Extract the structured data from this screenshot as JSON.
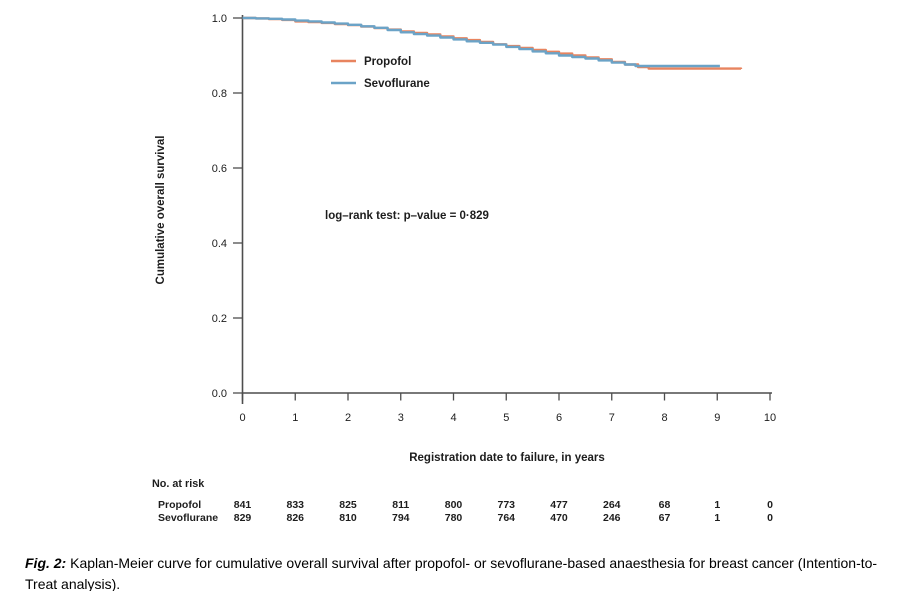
{
  "chart_data": {
    "type": "line",
    "subtype": "kaplan-meier-step",
    "xlabel": "Registration date to failure, in years",
    "ylabel": "Cumulative overall survival",
    "xlim": [
      0,
      10
    ],
    "ylim": [
      0.0,
      1.0
    ],
    "grid": false,
    "legend_position": "upper-left-inside",
    "x_ticks": [
      0,
      1,
      2,
      3,
      4,
      5,
      6,
      7,
      8,
      9,
      10
    ],
    "y_ticks": [
      "0.0",
      "0.2",
      "0.4",
      "0.6",
      "0.8",
      "1.0"
    ],
    "annotation": "log–rank test: p–value = 0·829",
    "series": [
      {
        "name": "Propofol",
        "color": "#E8845F",
        "points": [
          [
            0,
            1.0
          ],
          [
            0.25,
            0.999
          ],
          [
            0.5,
            0.997
          ],
          [
            0.75,
            0.995
          ],
          [
            1,
            0.991
          ],
          [
            1.25,
            0.989
          ],
          [
            1.5,
            0.987
          ],
          [
            1.75,
            0.984
          ],
          [
            2,
            0.981
          ],
          [
            2.25,
            0.977
          ],
          [
            2.5,
            0.973
          ],
          [
            2.75,
            0.969
          ],
          [
            3,
            0.964
          ],
          [
            3.25,
            0.96
          ],
          [
            3.5,
            0.956
          ],
          [
            3.75,
            0.951
          ],
          [
            4,
            0.946
          ],
          [
            4.25,
            0.941
          ],
          [
            4.5,
            0.936
          ],
          [
            4.75,
            0.93
          ],
          [
            5,
            0.925
          ],
          [
            5.25,
            0.92
          ],
          [
            5.5,
            0.915
          ],
          [
            5.75,
            0.91
          ],
          [
            6,
            0.905
          ],
          [
            6.25,
            0.9
          ],
          [
            6.5,
            0.895
          ],
          [
            6.75,
            0.89
          ],
          [
            7,
            0.883
          ],
          [
            7.25,
            0.876
          ],
          [
            7.5,
            0.869
          ],
          [
            7.7,
            0.865
          ],
          [
            9.45,
            0.864
          ]
        ]
      },
      {
        "name": "Sevoflurane",
        "color": "#6BA3C7",
        "points": [
          [
            0,
            1.0
          ],
          [
            0.25,
            0.999
          ],
          [
            0.5,
            0.998
          ],
          [
            0.75,
            0.996
          ],
          [
            1,
            0.993
          ],
          [
            1.25,
            0.991
          ],
          [
            1.5,
            0.988
          ],
          [
            1.75,
            0.985
          ],
          [
            2,
            0.982
          ],
          [
            2.25,
            0.978
          ],
          [
            2.5,
            0.974
          ],
          [
            2.75,
            0.968
          ],
          [
            3,
            0.962
          ],
          [
            3.25,
            0.957
          ],
          [
            3.5,
            0.953
          ],
          [
            3.75,
            0.948
          ],
          [
            4,
            0.943
          ],
          [
            4.25,
            0.938
          ],
          [
            4.5,
            0.934
          ],
          [
            4.75,
            0.929
          ],
          [
            5,
            0.923
          ],
          [
            5.25,
            0.917
          ],
          [
            5.5,
            0.911
          ],
          [
            5.75,
            0.906
          ],
          [
            6,
            0.9
          ],
          [
            6.25,
            0.896
          ],
          [
            6.5,
            0.892
          ],
          [
            6.75,
            0.887
          ],
          [
            7,
            0.881
          ],
          [
            7.25,
            0.876
          ],
          [
            7.45,
            0.872
          ],
          [
            9.05,
            0.872
          ]
        ]
      }
    ],
    "risk_table": {
      "header": "No. at risk",
      "times": [
        0,
        1,
        2,
        3,
        4,
        5,
        6,
        7,
        8,
        9,
        10
      ],
      "rows": [
        {
          "label": "Propofol",
          "values": [
            841,
            833,
            825,
            811,
            800,
            773,
            477,
            264,
            68,
            1,
            0
          ]
        },
        {
          "label": "Sevoflurane",
          "values": [
            829,
            826,
            810,
            794,
            780,
            764,
            470,
            246,
            67,
            1,
            0
          ]
        }
      ]
    }
  },
  "caption": {
    "prefix": "Fig. 2:",
    "text": "Kaplan-Meier curve for cumulative overall survival after propofol- or sevoflurane-based anaesthesia for breast cancer (Intention-to-Treat analysis)."
  }
}
